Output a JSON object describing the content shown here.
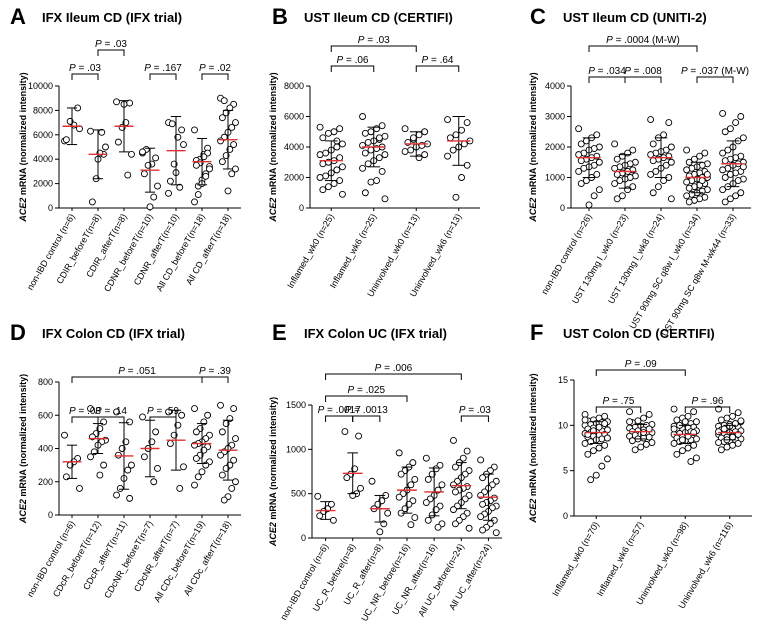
{
  "chart_data": [
    {
      "type": "scatter",
      "letter": "A",
      "title": "IFX Ileum CD (IFX trial)",
      "ylabel_gene": "ACE2",
      "ylabel_rest": " mRNA (normalized intensity)",
      "ylim": [
        0,
        10000
      ],
      "yticks": [
        0,
        2000,
        4000,
        6000,
        8000,
        10000
      ],
      "categories": [
        "non-IBD control (n=6)",
        "CDIR_beforeT(n=8)",
        "CDIR_afterT(n=8)",
        "CDNR_beforeT(n=10)",
        "CDNR_afterT(n=10)",
        "All CD_beforeT(n=18)",
        "All CD_afterT(n=18)"
      ],
      "means": [
        6700,
        4400,
        6700,
        3100,
        4700,
        3800,
        5600
      ],
      "sds": [
        1500,
        2000,
        2100,
        1800,
        2800,
        1900,
        2400
      ],
      "points": [
        [
          5500,
          8200,
          6800,
          7100,
          5600,
          6500
        ],
        [
          6300,
          4400,
          4500,
          2400,
          500,
          5000,
          6200,
          4000
        ],
        [
          8700,
          8600,
          7000,
          6600,
          5400,
          4400,
          2700,
          8500
        ],
        [
          4500,
          4100,
          3600,
          3500,
          2800,
          1800,
          900,
          100,
          4800,
          4600
        ],
        [
          7000,
          6400,
          5800,
          3600,
          2200,
          5200,
          1700,
          2900,
          6900,
          1200
        ],
        [
          6400,
          4900,
          4400,
          4000,
          3900,
          3400,
          2800,
          2300,
          1800,
          500,
          4500,
          4200,
          3700,
          3500,
          3200,
          2600,
          2000,
          1100
        ],
        [
          9000,
          8500,
          8200,
          7800,
          7400,
          7000,
          6600,
          6200,
          5800,
          5500,
          5200,
          4800,
          4300,
          3800,
          3200,
          2800,
          1400,
          8800
        ]
      ],
      "pvalues": [
        {
          "a": 0,
          "b": 1,
          "label": ".03",
          "level": 1
        },
        {
          "a": 1,
          "b": 2,
          "label": ".03",
          "level": 2
        },
        {
          "a": 3,
          "b": 4,
          "label": ".167",
          "level": 1
        },
        {
          "a": 5,
          "b": 6,
          "label": ".02",
          "level": 1
        }
      ]
    },
    {
      "type": "scatter",
      "letter": "B",
      "title": "UST Ileum CD (CERTIFI)",
      "ylabel_gene": "ACE2",
      "ylabel_rest": " mRNA (normalized intensity)",
      "ylim": [
        0,
        8000
      ],
      "yticks": [
        0,
        2000,
        4000,
        6000,
        8000
      ],
      "categories": [
        "Inflamed_wk0 (n=25)",
        "Inflamed_wk6 (n=25)",
        "Uninvolved_wk0 (n=13)",
        "Uninvolved_wk6 (n=13)"
      ],
      "means": [
        3100,
        4000,
        4200,
        4400
      ],
      "sds": [
        1300,
        1300,
        800,
        1600
      ],
      "points": [
        [
          5300,
          5200,
          5000,
          4900,
          4600,
          4200,
          4000,
          3800,
          3600,
          3500,
          3300,
          3100,
          3000,
          2900,
          2700,
          2500,
          2300,
          2100,
          2000,
          1800,
          1600,
          1400,
          1200,
          900,
          4400
        ],
        [
          6000,
          5400,
          5200,
          5000,
          4900,
          4700,
          4500,
          4400,
          4300,
          4100,
          4000,
          3900,
          3800,
          3600,
          3500,
          3300,
          3100,
          2900,
          2600,
          2400,
          1800,
          1700,
          1000,
          600,
          4600
        ],
        [
          5200,
          5000,
          4800,
          4500,
          4300,
          4200,
          4100,
          4000,
          3800,
          3700,
          3500,
          3300,
          4600
        ],
        [
          5800,
          5600,
          5100,
          4800,
          4600,
          4400,
          4200,
          4000,
          3800,
          3400,
          2800,
          2000,
          700
        ]
      ],
      "pvalues": [
        {
          "a": 0,
          "b": 1,
          "label": ".06",
          "level": 1
        },
        {
          "a": 2,
          "b": 3,
          "label": ".64",
          "level": 1
        },
        {
          "a": 0,
          "b": 2,
          "label": ".03",
          "level": 2
        }
      ]
    },
    {
      "type": "scatter",
      "letter": "C",
      "title": "UST Ileum CD (UNITI-2)",
      "ylabel_gene": "ACE2",
      "ylabel_rest": " mRNA (normalized intensity)",
      "ylim": [
        0,
        4000
      ],
      "yticks": [
        0,
        1000,
        2000,
        3000,
        4000
      ],
      "categories": [
        "non-IBD control (n=26)",
        "UST 130mg l_wk0 (n=23)",
        "UST 130mg l_wk8 (n=24)",
        "UST 90mg SC q8w l_wk0 (n=34)",
        "UST 90mg SC q8w M-wk44 (n=33)"
      ],
      "means": [
        1650,
        1200,
        1650,
        1000,
        1450
      ],
      "sds": [
        650,
        550,
        650,
        500,
        750
      ],
      "points": [
        [
          2600,
          2400,
          2300,
          2200,
          2100,
          2000,
          1950,
          1900,
          1800,
          1750,
          1700,
          1650,
          1600,
          1550,
          1500,
          1400,
          1350,
          1300,
          1200,
          1100,
          1000,
          900,
          800,
          600,
          400,
          100
        ],
        [
          2100,
          1900,
          1800,
          1700,
          1600,
          1500,
          1450,
          1400,
          1350,
          1300,
          1250,
          1200,
          1150,
          1100,
          1050,
          1000,
          950,
          900,
          800,
          700,
          600,
          400,
          300
        ],
        [
          2900,
          2800,
          2400,
          2300,
          2100,
          2000,
          1900,
          1850,
          1800,
          1750,
          1700,
          1650,
          1600,
          1550,
          1500,
          1400,
          1300,
          1200,
          1100,
          1000,
          900,
          700,
          500,
          300
        ],
        [
          1900,
          1800,
          1700,
          1600,
          1500,
          1450,
          1400,
          1350,
          1300,
          1250,
          1200,
          1150,
          1100,
          1050,
          1000,
          1000,
          950,
          900,
          850,
          800,
          750,
          700,
          650,
          600,
          550,
          500,
          450,
          400,
          350,
          300,
          250,
          200,
          1100,
          900
        ],
        [
          3100,
          3000,
          2800,
          2600,
          2500,
          2300,
          2200,
          2000,
          1900,
          1800,
          1700,
          1650,
          1600,
          1550,
          1500,
          1450,
          1400,
          1300,
          1250,
          1200,
          1150,
          1100,
          1000,
          950,
          900,
          800,
          700,
          600,
          500,
          400,
          300,
          200,
          1350
        ]
      ],
      "pvalues": [
        {
          "a": 0,
          "b": 1,
          "label": ".034",
          "level": 1
        },
        {
          "a": 1,
          "b": 2,
          "label": ".008",
          "level": 1
        },
        {
          "a": 3,
          "b": 4,
          "label": ".037 (M-W)",
          "level": 1
        },
        {
          "a": 0,
          "b": 3,
          "label": ".0004 (M-W)",
          "level": 2
        }
      ]
    },
    {
      "type": "scatter",
      "letter": "D",
      "title": "IFX Colon CD (IFX trial)",
      "ylabel_gene": "ACE2",
      "ylabel_rest": " mRNA (normalized intensity)",
      "ylim": [
        0,
        800
      ],
      "yticks": [
        0,
        200,
        400,
        600,
        800
      ],
      "categories": [
        "non-IBD control (n=6)",
        "CDcR_beforeT(n=12)",
        "CDcR_afterT(n=11)",
        "CDcNR_beforeT(n=7)",
        "CDcNR_afterT(n=7)",
        "All CDc_beforeT(n=19)",
        "All CDc_afterT(n=18)"
      ],
      "means": [
        320,
        460,
        355,
        400,
        450,
        430,
        390
      ],
      "sds": [
        100,
        90,
        200,
        170,
        180,
        120,
        180
      ],
      "points": [
        [
          480,
          340,
          320,
          300,
          230,
          160
        ],
        [
          640,
          560,
          520,
          490,
          470,
          450,
          440,
          420,
          380,
          350,
          300,
          240
        ],
        [
          620,
          560,
          440,
          400,
          360,
          300,
          270,
          220,
          160,
          120,
          100
        ],
        [
          590,
          500,
          440,
          400,
          350,
          280,
          200
        ],
        [
          620,
          600,
          540,
          480,
          430,
          290,
          160
        ],
        [
          640,
          600,
          560,
          520,
          500,
          480,
          460,
          440,
          430,
          420,
          410,
          390,
          360,
          340,
          320,
          300,
          260,
          230,
          180
        ],
        [
          660,
          640,
          580,
          550,
          500,
          460,
          420,
          400,
          380,
          360,
          330,
          300,
          280,
          240,
          200,
          160,
          110,
          90
        ]
      ],
      "pvalues": [
        {
          "a": 0,
          "b": 1,
          "label": ".03",
          "level": 1
        },
        {
          "a": 1,
          "b": 2,
          "label": ".14",
          "level": 1
        },
        {
          "a": 3,
          "b": 4,
          "label": ".59",
          "level": 1
        },
        {
          "a": 5,
          "b": 6,
          "label": ".39",
          "level": 2
        },
        {
          "a": 0,
          "b": 5,
          "label": ".051",
          "level": 2
        }
      ]
    },
    {
      "type": "scatter",
      "letter": "E",
      "title": "IFX Colon UC (IFX trial)",
      "ylabel_gene": "ACE2",
      "ylabel_rest": " mRNA (normalized intensity)",
      "ylim": [
        0,
        1500
      ],
      "yticks": [
        0,
        500,
        1000,
        1500
      ],
      "categories": [
        "non-IBD control (n=6)",
        "UC_R_before(n=8)",
        "UC_R_after(n=8)",
        "UC_NR_before(n=16)",
        "UC_NR_after(n=16)",
        "All UC_before(n=24)",
        "All UC_after(n=24)"
      ],
      "means": [
        310,
        730,
        330,
        540,
        520,
        590,
        460
      ],
      "sds": [
        100,
        230,
        150,
        260,
        270,
        260,
        260
      ],
      "points": [
        [
          470,
          380,
          330,
          300,
          250,
          200
        ],
        [
          1200,
          1150,
          780,
          720,
          680,
          560,
          500,
          480
        ],
        [
          640,
          480,
          420,
          380,
          330,
          280,
          160,
          70
        ],
        [
          960,
          850,
          800,
          760,
          720,
          660,
          600,
          540,
          500,
          460,
          420,
          380,
          330,
          280,
          230,
          150
        ],
        [
          900,
          820,
          780,
          720,
          660,
          600,
          540,
          480,
          440,
          400,
          360,
          320,
          260,
          200,
          160,
          120
        ],
        [
          1100,
          980,
          900,
          850,
          800,
          760,
          720,
          680,
          640,
          600,
          580,
          560,
          540,
          520,
          480,
          440,
          400,
          360,
          320,
          280,
          240,
          200,
          160,
          110
        ],
        [
          880,
          800,
          760,
          720,
          680,
          640,
          600,
          560,
          520,
          480,
          450,
          420,
          400,
          380,
          360,
          340,
          300,
          270,
          240,
          200,
          160,
          120,
          90,
          60
        ]
      ],
      "pvalues": [
        {
          "a": 0,
          "b": 1,
          "label": ".0017",
          "level": 1
        },
        {
          "a": 1,
          "b": 2,
          "label": ".0013",
          "level": 1
        },
        {
          "a": 5,
          "b": 6,
          "label": ".03",
          "level": 1
        },
        {
          "a": 0,
          "b": 3,
          "label": ".025",
          "level": 2
        },
        {
          "a": 0,
          "b": 5,
          "label": ".006",
          "level": 3
        }
      ]
    },
    {
      "type": "scatter",
      "letter": "F",
      "title": "UST Colon CD (CERTIFI)",
      "ylabel_gene": "ACE2",
      "ylabel_rest": " mRNA (normalized intensity)",
      "ylim": [
        0,
        15
      ],
      "yticks": [
        0,
        5,
        10,
        15
      ],
      "categories": [
        "Inflamed_wk0 (n=70)",
        "Inflamed_wk6 (n=57)",
        "Uninvolved_wk0 (n=98)",
        "Uninvolved_wk6 (n=116)"
      ],
      "means": [
        9.2,
        9.3,
        9.0,
        9.2
      ],
      "sds": [
        1.2,
        0.8,
        1.0,
        0.8
      ],
      "points": [
        [
          11.2,
          11,
          10.8,
          10.6,
          10.5,
          10.4,
          10.3,
          10.2,
          10.1,
          10,
          9.9,
          9.8,
          9.7,
          9.6,
          9.5,
          9.4,
          9.3,
          9.2,
          9.1,
          9,
          8.9,
          8.8,
          8.7,
          8.6,
          8.5,
          8.4,
          8.2,
          8,
          7.8,
          7.5,
          7.2,
          6.8,
          6.3,
          5.5,
          4.5,
          4.0,
          10.6,
          10.2,
          9.8,
          9.4,
          9,
          8.6
        ],
        [
          11.5,
          11.2,
          10.8,
          10.5,
          10.3,
          10.1,
          10,
          9.9,
          9.8,
          9.7,
          9.6,
          9.5,
          9.4,
          9.3,
          9.2,
          9.1,
          9,
          8.9,
          8.8,
          8.7,
          8.6,
          8.5,
          8.3,
          8.1,
          7.9,
          7.6,
          7.3,
          10.4,
          9.6,
          9.2
        ],
        [
          11.8,
          11.5,
          11,
          10.8,
          10.6,
          10.4,
          10.2,
          10.1,
          10,
          9.9,
          9.8,
          9.7,
          9.6,
          9.5,
          9.4,
          9.3,
          9.2,
          9.1,
          9,
          8.9,
          8.8,
          8.7,
          8.6,
          8.5,
          8.4,
          8.3,
          8.2,
          8,
          7.8,
          7.5,
          7.2,
          6.8,
          6.4,
          6,
          10.4,
          10,
          9.6,
          9.2,
          8.8,
          8.4
        ],
        [
          11.8,
          11.4,
          11,
          10.8,
          10.6,
          10.4,
          10.2,
          10.1,
          10,
          9.9,
          9.8,
          9.7,
          9.6,
          9.5,
          9.4,
          9.3,
          9.2,
          9.1,
          9,
          8.9,
          8.8,
          8.7,
          8.6,
          8.5,
          8.4,
          8.3,
          8.2,
          8.1,
          8,
          7.8,
          7.6,
          7.3,
          10.5,
          10.2,
          9.9,
          9.6,
          9.3,
          9,
          8.7,
          8.4
        ]
      ],
      "pvalues": [
        {
          "a": 0,
          "b": 1,
          "label": ".75",
          "level": 1
        },
        {
          "a": 2,
          "b": 3,
          "label": ".96",
          "level": 1
        },
        {
          "a": 0,
          "b": 2,
          "label": ".09",
          "level": 2
        }
      ]
    }
  ]
}
